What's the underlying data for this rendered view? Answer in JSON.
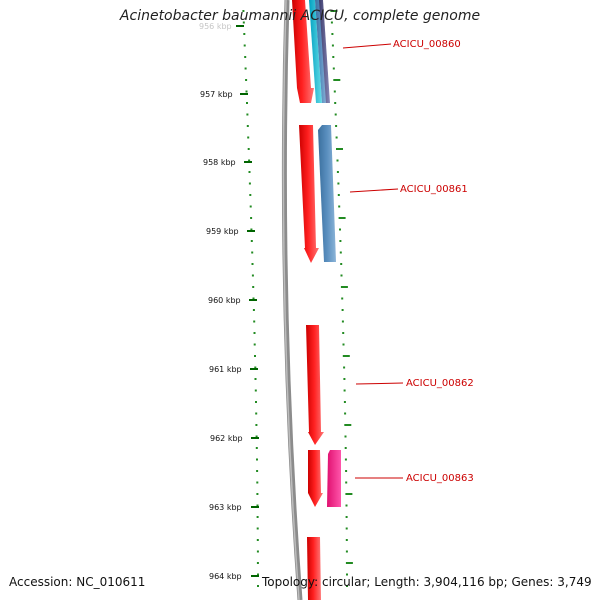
{
  "title": "Acinetobacter baumannii ACICU, complete genome",
  "footer": {
    "accession": "Accession: NC_010611",
    "stats": "Topology: circular; Length: 3,904,116 bp; Genes: 3,749"
  },
  "colors": {
    "forward_strand": "#ff0000",
    "gc_skew_dots": "#228b22",
    "backbone": "#808080",
    "label": "#cc0000"
  },
  "scale_ticks": [
    "956 kbp",
    "957 kbp",
    "958 kbp",
    "959 kbp",
    "960 kbp",
    "961 kbp",
    "962 kbp",
    "963 kbp",
    "964 kbp"
  ],
  "genes": [
    {
      "label": "ACICU_00860",
      "strand": "forward",
      "color": "#ff0000"
    },
    {
      "label": "ACICU_00861",
      "strand": "reverse",
      "color": "#4682b4"
    },
    {
      "label": "ACICU_00862",
      "strand": "forward",
      "color": "#ff0000"
    },
    {
      "label": "ACICU_00863",
      "strand": "forward",
      "color": "#ff0000"
    },
    {
      "label": "",
      "strand": "reverse",
      "color": "#ff1493"
    },
    {
      "label": "",
      "strand": "forward",
      "color": "#ff0000"
    }
  ]
}
